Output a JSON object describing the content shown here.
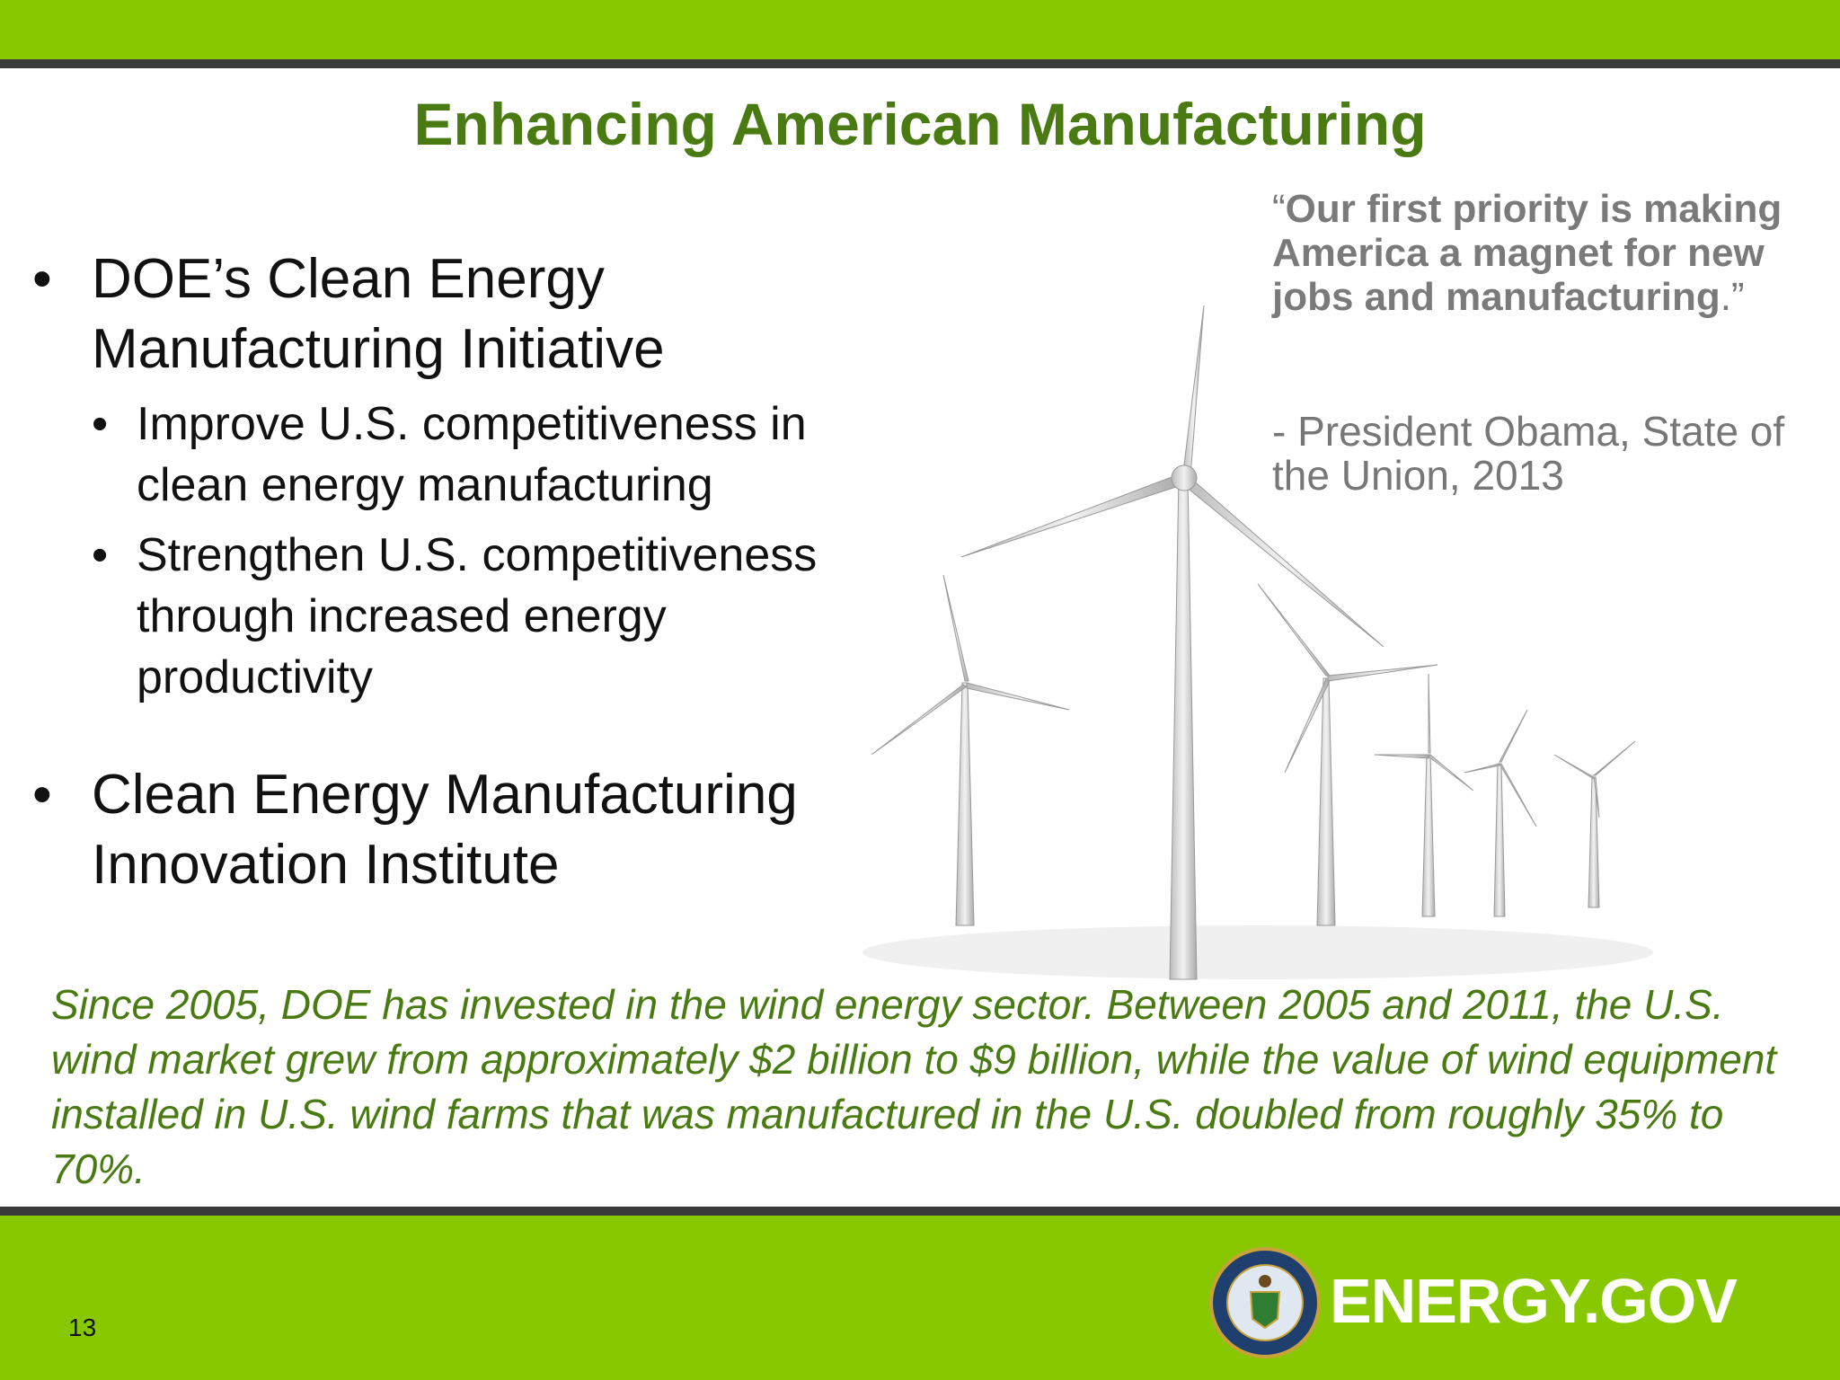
{
  "header": {
    "title": "Enhancing American Manufacturing"
  },
  "bullets": [
    {
      "text": "DOE’s Clean Energy Manufacturing Initiative",
      "sub": [
        "Improve U.S. competitiveness in clean energy manufacturing",
        "Strengthen U.S. competitiveness through increased energy productivity"
      ]
    },
    {
      "text": "Clean Energy Manufacturing Innovation Institute",
      "sub": []
    }
  ],
  "quote": {
    "open": "“",
    "text": "Our first priority is making America a magnet for new jobs and manufacturing",
    "close": ".”",
    "attribution": "- President Obama, State of the Union, 2013"
  },
  "note": "Since 2005, DOE has invested in the wind energy sector.  Between 2005 and 2011, the U.S. wind market grew from approximately $2 billion to $9 billion, while the value of wind equipment installed in U.S. wind farms that was manufactured in the U.S. doubled from roughly 35% to 70%.",
  "footer": {
    "page_number": "13",
    "logo": "ENERGY.GOV"
  }
}
